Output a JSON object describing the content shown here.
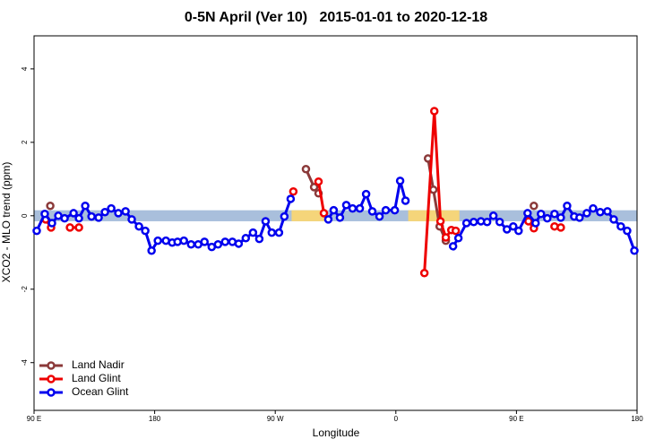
{
  "chart_data": {
    "type": "line",
    "title": "0-5N April (Ver 10)   2015-01-01 to 2020-12-18",
    "xlabel": "Longitude",
    "ylabel": "XCO2 - MLO trend (ppm)",
    "xlim": [
      90,
      540
    ],
    "ylim": [
      -5.3,
      4.9
    ],
    "xticks": [
      {
        "value": 90,
        "label": "90 E"
      },
      {
        "value": 180,
        "label": "180"
      },
      {
        "value": 270,
        "label": "90 W"
      },
      {
        "value": 360,
        "label": "0"
      },
      {
        "value": 450,
        "label": "90 E"
      },
      {
        "value": 540,
        "label": "180"
      }
    ],
    "yticks": [
      -4,
      -2,
      0,
      2,
      4
    ],
    "grid": false,
    "legend": "bottom-left",
    "band": {
      "ylim": [
        -0.15,
        0.15
      ],
      "color": "#a9bfdc"
    },
    "highlights": [
      {
        "xlim": [
          282.2,
          309.0
        ],
        "color": "#f5d57a"
      },
      {
        "xlim": [
          369.2,
          407.4
        ],
        "color": "#f5d57a"
      }
    ],
    "series": [
      {
        "name": "Land Nadir",
        "color": "#8b3a3a",
        "x": [
          102.1,
          null,
          292.9,
          299.0,
          302.3,
          null,
          384.0,
          388.0,
          392.7,
          397.3,
          null,
          463.0
        ],
        "values": [
          0.27,
          null,
          1.27,
          0.78,
          0.61,
          null,
          1.56,
          0.71,
          -0.29,
          -0.68,
          null,
          0.27
        ]
      },
      {
        "name": "Land Glint",
        "color": "#ee0000",
        "x": [
          98.7,
          102.7,
          null,
          116.8,
          123.5,
          null,
          283.5,
          null,
          302.3,
          306.3,
          null,
          381.3,
          388.7,
          393.3,
          397.3,
          401.4,
          404.7,
          null,
          459.0,
          463.0,
          null,
          478.4,
          483.1
        ],
        "values": [
          -0.1,
          -0.32,
          null,
          -0.32,
          -0.32,
          null,
          0.66,
          null,
          0.93,
          0.07,
          null,
          -1.56,
          2.85,
          -0.15,
          -0.59,
          -0.39,
          -0.41,
          null,
          -0.15,
          -0.34,
          null,
          -0.29,
          -0.32
        ]
      },
      {
        "name": "Ocean Glint",
        "color": "#0000ee",
        "x": [
          92.0,
          98.0,
          103.4,
          108.1,
          112.8,
          119.5,
          123.5,
          128.2,
          132.9,
          138.2,
          142.9,
          147.6,
          152.9,
          158.3,
          162.9,
          168.3,
          173.0,
          177.7,
          182.4,
          188.4,
          193.1,
          197.1,
          201.8,
          207.2,
          212.5,
          217.2,
          222.6,
          227.3,
          232.6,
          238.0,
          242.7,
          248.0,
          253.4,
          258.1,
          262.8,
          267.4,
          272.8,
          276.8,
          281.5,
          null,
          309.6,
          313.6,
          318.3,
          323.0,
          327.7,
          333.1,
          337.8,
          342.4,
          347.8,
          352.5,
          359.2,
          363.2,
          367.2,
          null,
          402.7,
          406.7,
          412.7,
          418.1,
          423.5,
          428.1,
          432.8,
          437.5,
          442.9,
          447.6,
          451.6,
          458.3,
          464.3,
          468.3,
          473.0,
          478.4,
          483.1,
          487.8,
          493.1,
          497.1,
          502.5,
          507.2,
          512.5,
          517.9,
          522.6,
          527.9,
          532.6,
          538.0
        ],
        "values": [
          -0.41,
          0.05,
          -0.2,
          0.0,
          -0.07,
          0.07,
          -0.07,
          0.27,
          -0.02,
          -0.05,
          0.1,
          0.2,
          0.07,
          0.12,
          -0.1,
          -0.29,
          -0.41,
          -0.95,
          -0.68,
          -0.68,
          -0.73,
          -0.71,
          -0.68,
          -0.78,
          -0.78,
          -0.71,
          -0.85,
          -0.78,
          -0.71,
          -0.71,
          -0.76,
          -0.61,
          -0.46,
          -0.63,
          -0.15,
          -0.46,
          -0.46,
          -0.02,
          0.46,
          null,
          -0.1,
          0.15,
          -0.05,
          0.29,
          0.2,
          0.2,
          0.59,
          0.12,
          -0.02,
          0.15,
          0.15,
          0.95,
          0.41,
          null,
          -0.83,
          -0.61,
          -0.2,
          -0.17,
          -0.15,
          -0.17,
          0.0,
          -0.17,
          -0.37,
          -0.29,
          -0.41,
          0.07,
          -0.2,
          0.05,
          -0.07,
          0.05,
          -0.05,
          0.27,
          -0.02,
          -0.05,
          0.07,
          0.2,
          0.1,
          0.12,
          -0.1,
          -0.29,
          -0.41,
          -0.95
        ]
      }
    ]
  }
}
